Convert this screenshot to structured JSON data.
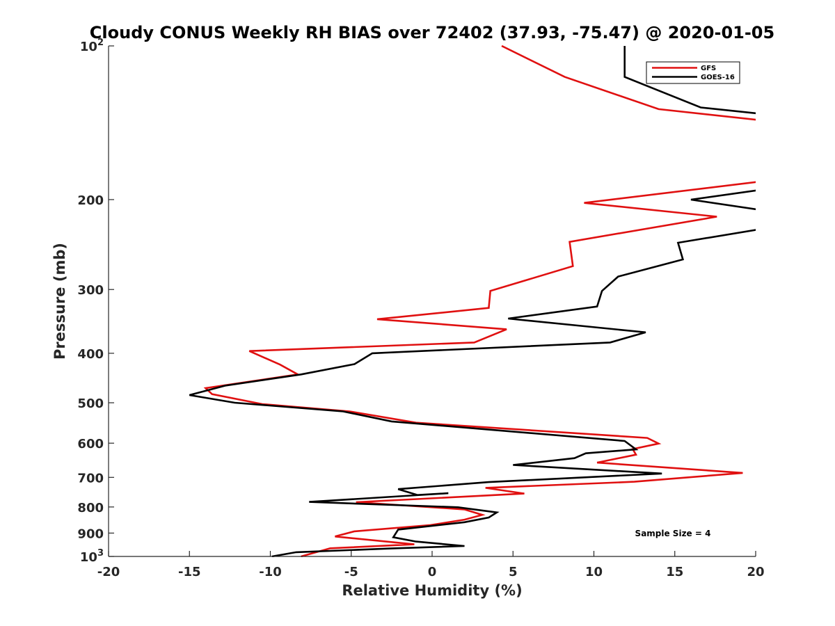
{
  "chart_data": {
    "type": "line",
    "title": "Cloudy CONUS Weekly RH BIAS over 72402 (37.93, -75.47) @ 2020-01-05",
    "xlabel": "Relative Humidity (%)",
    "ylabel": "Pressure (mb)",
    "xlim": [
      -20,
      20
    ],
    "ylim": [
      100,
      1000
    ],
    "y_scale": "log",
    "y_reversed": true,
    "x_ticks": [
      "-20",
      "-15",
      "-10",
      "-5",
      "0",
      "5",
      "10",
      "15",
      "20"
    ],
    "y_ticks": [
      {
        "value": 100,
        "base": "10",
        "exp": "2"
      },
      {
        "value": 200,
        "label": "200"
      },
      {
        "value": 300,
        "label": "300"
      },
      {
        "value": 400,
        "label": "400"
      },
      {
        "value": 500,
        "label": "500"
      },
      {
        "value": 600,
        "label": "600"
      },
      {
        "value": 700,
        "label": "700"
      },
      {
        "value": 800,
        "label": "800"
      },
      {
        "value": 900,
        "label": "900"
      },
      {
        "value": 1000,
        "base": "10",
        "exp": "3"
      }
    ],
    "grid": false,
    "legend_position": "top-right",
    "annotation": "Sample Size = 4",
    "series": [
      {
        "name": "GFS",
        "color": "#e01010",
        "points": [
          [
            4.3,
            100
          ],
          [
            8.2,
            115
          ],
          [
            14.0,
            133
          ],
          [
            20.5,
            140
          ],
          [
            20.5,
            184
          ],
          [
            9.4,
            203
          ],
          [
            17.6,
            216
          ],
          [
            8.5,
            242
          ],
          [
            8.7,
            270
          ],
          [
            3.6,
            302
          ],
          [
            3.5,
            326
          ],
          [
            -3.4,
            343
          ],
          [
            4.6,
            359
          ],
          [
            2.6,
            381
          ],
          [
            -11.3,
            396
          ],
          [
            -9.4,
            421
          ],
          [
            -8.3,
            440
          ],
          [
            -14.0,
            468
          ],
          [
            -13.6,
            481
          ],
          [
            -10.5,
            503
          ],
          [
            -5.1,
            520
          ],
          [
            -1.0,
            547
          ],
          [
            13.3,
            586
          ],
          [
            14.0,
            601
          ],
          [
            12.4,
            616
          ],
          [
            12.6,
            632
          ],
          [
            10.2,
            655
          ],
          [
            19.2,
            686
          ],
          [
            12.5,
            714
          ],
          [
            3.3,
            734
          ],
          [
            5.7,
            753
          ],
          [
            -4.7,
            783
          ],
          [
            2.0,
            809
          ],
          [
            3.1,
            829
          ],
          [
            2.0,
            847
          ],
          [
            -0.1,
            868
          ],
          [
            -4.8,
            893
          ],
          [
            -6.0,
            914
          ],
          [
            -1.1,
            947
          ],
          [
            -6.3,
            964
          ],
          [
            -8.1,
            1000
          ]
        ]
      },
      {
        "name": "GOES-16",
        "color": "#000000",
        "points": [
          [
            11.9,
            100
          ],
          [
            11.9,
            115
          ],
          [
            16.6,
            132
          ],
          [
            20.5,
            136
          ],
          [
            20.5,
            191
          ],
          [
            16.0,
            200
          ],
          [
            20.5,
            210
          ],
          [
            20.5,
            228
          ],
          [
            15.2,
            243
          ],
          [
            15.5,
            262
          ],
          [
            11.5,
            283
          ],
          [
            10.5,
            302
          ],
          [
            10.2,
            324
          ],
          [
            4.7,
            342
          ],
          [
            13.2,
            364
          ],
          [
            11.0,
            381
          ],
          [
            -3.7,
            400
          ],
          [
            -4.8,
            420
          ],
          [
            -8.1,
            440
          ],
          [
            -12.8,
            463
          ],
          [
            -15.0,
            483
          ],
          [
            -12.2,
            500
          ],
          [
            -5.5,
            520
          ],
          [
            -2.5,
            544
          ],
          [
            11.9,
            594
          ],
          [
            12.6,
            617
          ],
          [
            9.5,
            628
          ],
          [
            8.8,
            642
          ],
          [
            5.0,
            662
          ],
          [
            14.2,
            688
          ],
          [
            3.5,
            715
          ],
          [
            -2.1,
            738
          ],
          [
            -0.9,
            758
          ],
          [
            1.0,
            752
          ],
          [
            -7.6,
            782
          ],
          [
            1.6,
            801
          ],
          [
            4.0,
            820
          ],
          [
            3.5,
            839
          ],
          [
            2.0,
            857
          ],
          [
            -2.1,
            886
          ],
          [
            -2.4,
            917
          ],
          [
            -1.0,
            935
          ],
          [
            2.0,
            954
          ],
          [
            -2.6,
            965
          ],
          [
            -8.4,
            981
          ],
          [
            -9.9,
            1000
          ]
        ]
      }
    ]
  }
}
